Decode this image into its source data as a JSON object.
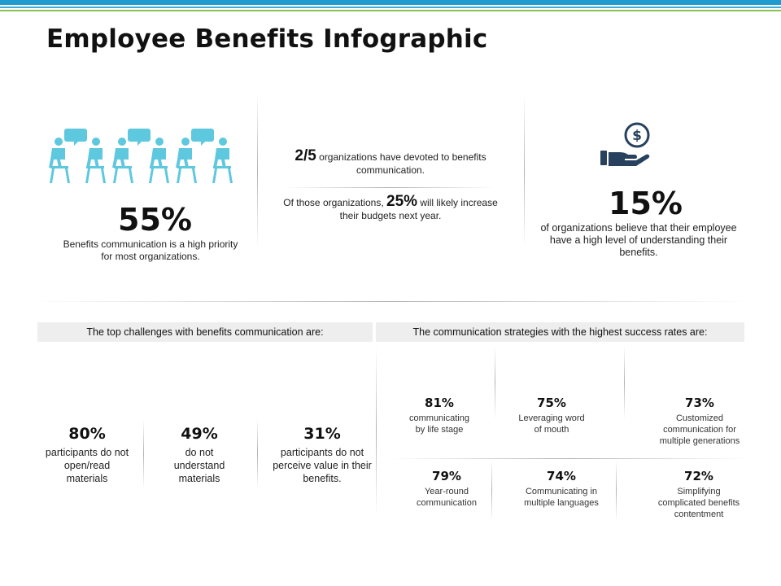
{
  "title": "Employee Benefits Infographic",
  "colors": {
    "accent_teal": "#5ec8de",
    "icon_navy": "#27415e",
    "header_bg": "#eeeeee",
    "top_bar_blue": "#1f9bd0",
    "top_bar_green": "#8cc152"
  },
  "icons": {
    "people": "people-meeting-icon",
    "money": "hand-holding-dollar-icon"
  },
  "stats": {
    "priority": {
      "value": "55%",
      "description": "Benefits communication is a high priority for most organizations."
    },
    "devoted": {
      "fraction": "2/5",
      "text": "organizations have devoted to benefits communication.",
      "prefix": "Of those organizations,",
      "percent": "25%",
      "suffix": "will likely increase their budgets next year."
    },
    "understanding": {
      "value": "15%",
      "description": "of organizations believe that their employee have a high level of understanding their benefits."
    }
  },
  "challenges": {
    "header": "The top challenges with benefits communication are:",
    "items": [
      {
        "value": "80%",
        "label": "participants do not open/read materials"
      },
      {
        "value": "49%",
        "label": "do not understand materials"
      },
      {
        "value": "31%",
        "label": "participants do not perceive value in their benefits."
      }
    ]
  },
  "strategies": {
    "header": "The communication strategies with the highest success rates are:",
    "items": [
      {
        "value": "81%",
        "label": "communicating by life stage"
      },
      {
        "value": "75%",
        "label": "Leveraging word of mouth"
      },
      {
        "value": "73%",
        "label": "Customized communication for multiple generations"
      },
      {
        "value": "79%",
        "label": "Year-round communication"
      },
      {
        "value": "74%",
        "label": "Communicating in multiple languages"
      },
      {
        "value": "72%",
        "label": "Simplifying complicated benefits contentment"
      }
    ]
  }
}
